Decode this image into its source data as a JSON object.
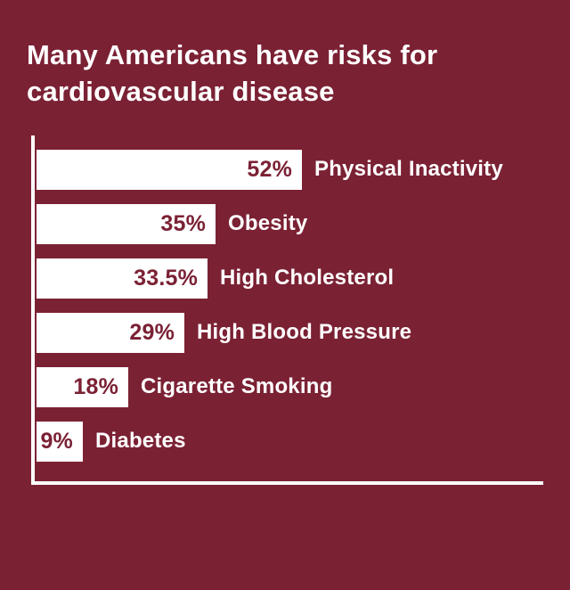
{
  "page": {
    "background_color": "#7b2134",
    "bar_color": "#ffffff",
    "category_label_color": "#ffffff",
    "value_label_color": "#7b2134"
  },
  "chart_data": {
    "type": "bar",
    "orientation": "horizontal",
    "title": "Many Americans have risks for cardiovascular disease",
    "categories": [
      "Physical Inactivity",
      "Obesity",
      "High Cholesterol",
      "High Blood Pressure",
      "Cigarette Smoking",
      "Diabetes"
    ],
    "values": [
      52,
      35,
      33.5,
      29,
      18,
      9
    ],
    "value_labels": [
      "52%",
      "35%",
      "33.5%",
      "29%",
      "18%",
      "9%"
    ],
    "xlabel": "",
    "ylabel": "",
    "xlim": [
      0,
      100
    ],
    "grid": false,
    "legend": false,
    "value_label_position": "inside-end",
    "category_label_position": "right-of-bar"
  }
}
